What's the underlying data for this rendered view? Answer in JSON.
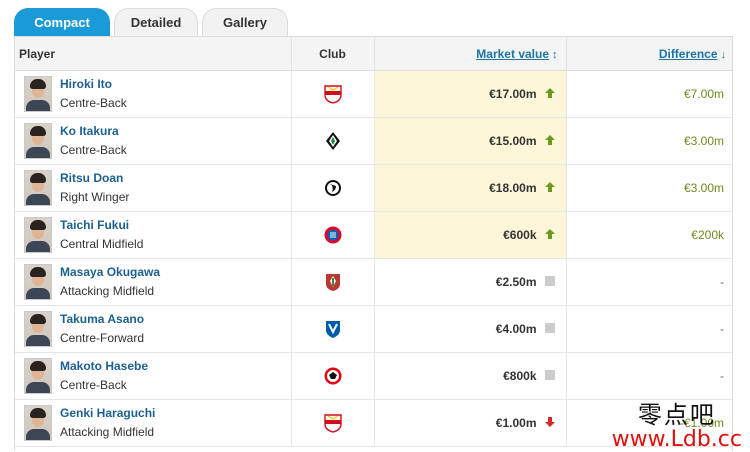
{
  "tabs": [
    {
      "label": "Compact",
      "active": true
    },
    {
      "label": "Detailed",
      "active": false
    },
    {
      "label": "Gallery",
      "active": false
    }
  ],
  "columns": {
    "player": "Player",
    "club": "Club",
    "market_value": "Market value",
    "difference": "Difference"
  },
  "rows": [
    {
      "name": "Hiroki Ito",
      "position": "Centre-Back",
      "club_icon": "vfb-stuttgart-crest",
      "market_value": "€17.00m",
      "trend": "up",
      "difference": "€7.00m",
      "highlighted": true
    },
    {
      "name": "Ko Itakura",
      "position": "Centre-Back",
      "club_icon": "gladbach-crest",
      "market_value": "€15.00m",
      "trend": "up",
      "difference": "€3.00m",
      "highlighted": true
    },
    {
      "name": "Ritsu Doan",
      "position": "Right Winger",
      "club_icon": "sc-freiburg-crest",
      "market_value": "€18.00m",
      "trend": "up",
      "difference": "€3.00m",
      "highlighted": true
    },
    {
      "name": "Taichi Fukui",
      "position": "Central Midfield",
      "club_icon": "bayern-munich-crest",
      "market_value": "€600k",
      "trend": "up",
      "difference": "€200k",
      "highlighted": true
    },
    {
      "name": "Masaya Okugawa",
      "position": "Attacking Midfield",
      "club_icon": "fc-augsburg-crest",
      "market_value": "€2.50m",
      "trend": "same",
      "difference": "-",
      "highlighted": false
    },
    {
      "name": "Takuma Asano",
      "position": "Centre-Forward",
      "club_icon": "vfl-bochum-crest",
      "market_value": "€4.00m",
      "trend": "same",
      "difference": "-",
      "highlighted": false
    },
    {
      "name": "Makoto Hasebe",
      "position": "Centre-Back",
      "club_icon": "eintracht-frankfurt-crest",
      "market_value": "€800k",
      "trend": "same",
      "difference": "-",
      "highlighted": false
    },
    {
      "name": "Genki Haraguchi",
      "position": "Attacking Midfield",
      "club_icon": "vfb-stuttgart-crest",
      "market_value": "€1.00m",
      "trend": "down",
      "difference": "-€1.00m",
      "highlighted": false
    }
  ],
  "colors": {
    "accent": "#1a9bd7",
    "up": "#6c9a1f",
    "down": "#d12b2b",
    "same": "#cccccc",
    "highlight": "#fdf6d9"
  },
  "watermark": {
    "top": "零点吧",
    "bottom": "www.Ldb.cc"
  }
}
